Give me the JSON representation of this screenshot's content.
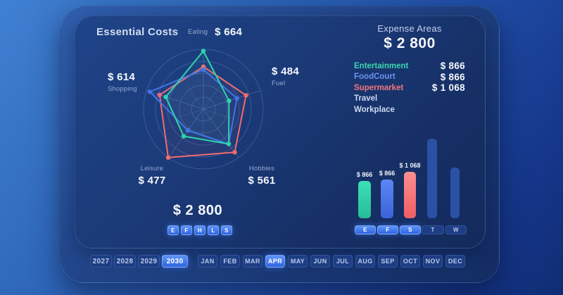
{
  "left_panel": {
    "title": "Essential Costs",
    "total": "$ 2 800",
    "mini_buttons": [
      "E",
      "F",
      "H",
      "L",
      "S"
    ],
    "axes": {
      "eating": {
        "label": "Eating",
        "value": "$ 664"
      },
      "fuel": {
        "label": "Fuel",
        "value": "$ 484"
      },
      "shopping": {
        "label": "Shopping",
        "value": "$ 614"
      },
      "leisure": {
        "label": "Leisure",
        "value": "$ 477"
      },
      "hobbies": {
        "label": "Hobbies",
        "value": "$ 561"
      }
    }
  },
  "right_panel": {
    "title": "Expense Areas",
    "total": "$ 2 800",
    "legend": [
      {
        "label": "Entertainment",
        "value": "$ 866",
        "color": "#3bd6ae"
      },
      {
        "label": "FoodCourt",
        "value": "$ 866",
        "color": "#6b93f2"
      },
      {
        "label": "Supermarket",
        "value": "$ 1 068",
        "color": "#f2777c"
      },
      {
        "label": "Travel",
        "value": "",
        "color": "#ccd8ef"
      },
      {
        "label": "Workplace",
        "value": "",
        "color": "#ccd8ef"
      }
    ]
  },
  "footer": {
    "years": [
      {
        "label": "2027",
        "selected": false
      },
      {
        "label": "2028",
        "selected": false
      },
      {
        "label": "2029",
        "selected": false
      },
      {
        "label": "2030",
        "selected": true
      }
    ],
    "months": [
      {
        "label": "JAN",
        "selected": false
      },
      {
        "label": "FEB",
        "selected": false
      },
      {
        "label": "MAR",
        "selected": false
      },
      {
        "label": "APR",
        "selected": true
      },
      {
        "label": "MAY",
        "selected": false
      },
      {
        "label": "JUN",
        "selected": false
      },
      {
        "label": "JUL",
        "selected": false
      },
      {
        "label": "AUG",
        "selected": false
      },
      {
        "label": "SEP",
        "selected": false
      },
      {
        "label": "OCT",
        "selected": false
      },
      {
        "label": "NOV",
        "selected": false
      },
      {
        "label": "DEC",
        "selected": false
      }
    ]
  },
  "colors": {
    "teal": "#2fd3ab",
    "blue": "#4273e8",
    "red": "#f26b6f",
    "dim_bar": "#2a51a4",
    "accent_button": "#3c78ee"
  },
  "chart_data": [
    {
      "type": "radar",
      "title": "Essential Costs",
      "categories": [
        "Eating",
        "Fuel",
        "Hobbies",
        "Leisure",
        "Shopping"
      ],
      "axis_totals": [
        664,
        484,
        561,
        477,
        614
      ],
      "total": 2800,
      "rings": 5,
      "grid": true,
      "scale": "fraction of outer ring (0-1), estimated from gridlines",
      "series": [
        {
          "name": "Supermarket",
          "color": "#f26b6f",
          "values": [
            0.71,
            0.75,
            0.89,
            1.0,
            0.77
          ]
        },
        {
          "name": "FoodCourt",
          "color": "#4273e8",
          "values": [
            0.66,
            0.59,
            0.72,
            0.44,
            0.94
          ]
        },
        {
          "name": "Entertainment",
          "color": "#2fd3ab",
          "values": [
            0.97,
            0.45,
            0.72,
            0.56,
            0.66
          ]
        }
      ]
    },
    {
      "type": "bar",
      "title": "Expense Areas",
      "total": 2800,
      "categories": [
        "E",
        "F",
        "S",
        "T",
        "W"
      ],
      "bars": [
        {
          "label": "$ 866",
          "value": 866,
          "height_frac": 0.47,
          "color_top": "#3ddfb6",
          "color_bottom": "#27bd97",
          "highlighted": true
        },
        {
          "label": "$ 866",
          "value": 866,
          "height_frac": 0.49,
          "color_top": "#5d86f5",
          "color_bottom": "#3b63d8",
          "highlighted": true
        },
        {
          "label": "$ 1 068",
          "value": 1068,
          "height_frac": 0.58,
          "color_top": "#fb8e90",
          "color_bottom": "#ef5e64",
          "highlighted": true
        },
        {
          "label": "",
          "value": null,
          "height_frac": 1.0,
          "color": "#2a51a4",
          "highlighted": false
        },
        {
          "label": "",
          "value": null,
          "height_frac": 0.64,
          "color": "#2a51a4",
          "highlighted": false
        }
      ]
    }
  ]
}
